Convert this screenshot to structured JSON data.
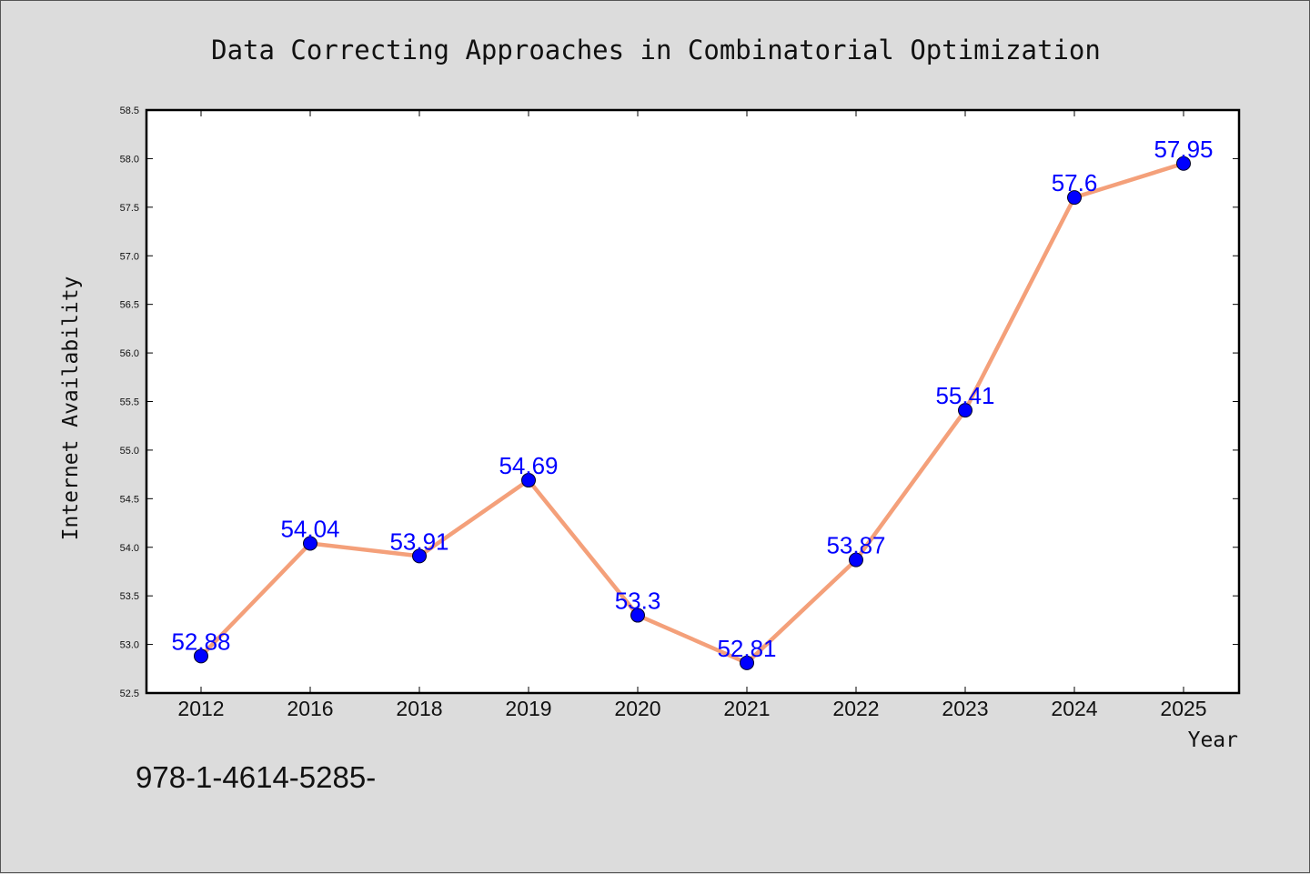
{
  "chart_data": {
    "type": "line",
    "title": "Data Correcting Approaches in Combinatorial Optimization",
    "xlabel": "Year",
    "ylabel": "Internet Availability",
    "categories": [
      "2012",
      "2016",
      "2018",
      "2019",
      "2020",
      "2021",
      "2022",
      "2023",
      "2024",
      "2025"
    ],
    "values": [
      52.88,
      54.04,
      53.91,
      54.69,
      53.3,
      52.81,
      53.87,
      55.41,
      57.6,
      57.95
    ],
    "data_labels": [
      "52.88",
      "54.04",
      "53.91",
      "54.69",
      "53.3",
      "52.81",
      "53.87",
      "55.41",
      "57.6",
      "57.95"
    ],
    "ylim": [
      52.5,
      58.5
    ],
    "yticks": [
      "52.5",
      "53.0",
      "53.5",
      "54.0",
      "54.5",
      "55.0",
      "55.5",
      "56.0",
      "56.5",
      "57.0",
      "57.5",
      "58.0",
      "58.5"
    ],
    "grid": false,
    "legend": "none",
    "line_color": "#f4a07a",
    "marker_color": "#0000ff",
    "label_color": "#0000ff",
    "background_color": "#dcdcdc",
    "plot_background_color": "#ffffff"
  },
  "footer": {
    "text": "978-1-4614-5285-"
  }
}
